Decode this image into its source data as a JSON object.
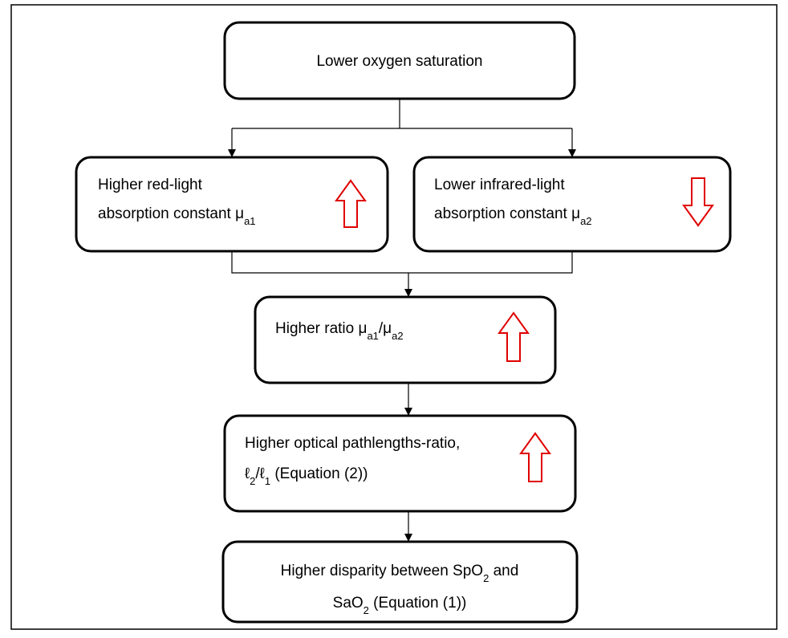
{
  "nodes": [
    {
      "lines": [
        [
          {
            "text": "Lower oxygen saturation"
          }
        ]
      ]
    },
    {
      "lines": [
        [
          {
            "text": "Higher red-light"
          }
        ],
        [
          {
            "text": "absorption constant μ"
          },
          {
            "sub": "a1"
          }
        ]
      ]
    },
    {
      "lines": [
        [
          {
            "text": "Lower infrared-light"
          }
        ],
        [
          {
            "text": "absorption constant μ"
          },
          {
            "sub": "a2"
          }
        ]
      ]
    },
    {
      "lines": [
        [
          {
            "text": "Higher ratio μ"
          },
          {
            "sub": "a1"
          },
          {
            "text": "/μ"
          },
          {
            "sub": "a2"
          }
        ]
      ]
    },
    {
      "lines": [
        [
          {
            "text": "Higher optical pathlengths-ratio,"
          }
        ],
        [
          {
            "text": "ℓ"
          },
          {
            "sub": "2"
          },
          {
            "text": "/ℓ"
          },
          {
            "sub": "1"
          },
          {
            "text": " (Equation (2))"
          }
        ]
      ]
    },
    {
      "lines": [
        [
          {
            "text": "Higher disparity between SpO"
          },
          {
            "sub": "2"
          },
          {
            "text": " and"
          }
        ],
        [
          {
            "text": "SaO"
          },
          {
            "sub": "2"
          },
          {
            "text": " (Equation (1))"
          }
        ]
      ]
    }
  ]
}
